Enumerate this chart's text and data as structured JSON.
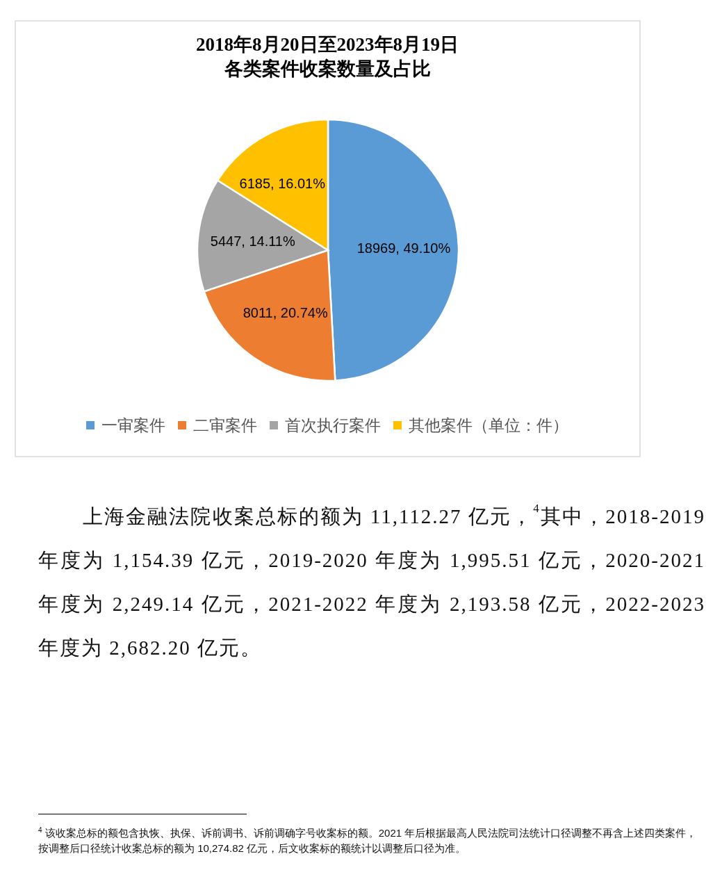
{
  "chart_data": {
    "type": "pie",
    "title": "2018年8月20日至2023年8月19日",
    "subtitle": "各类案件收案数量及占比",
    "categories": [
      "一审案件",
      "二审案件",
      "首次执行案件",
      "其他案件（单位：件）"
    ],
    "values": [
      18969,
      8011,
      5447,
      6185
    ],
    "colors": [
      "#5b9bd5",
      "#ed7d31",
      "#a5a5a5",
      "#ffc000"
    ],
    "value_labels": [
      "18969, 49.10%",
      "8011, 20.74%",
      "5447, 14.11%",
      "6185, 16.01%"
    ],
    "legend": "bottom",
    "annotations": [
      "上海金融法院收案总标的额为 11,112.27 亿元，$^{4}$其中，2018-2019 年度为 1,154.39 亿元，2019-2020 年度为 1,995.51 亿元，2020-2021 年度为 2,249.14 亿元，2021-2022 年度为 2,193.58 亿元，2022-2023 年度为 2,682.20 亿元。",
      "$^{4}$ 该收案总标的额包含执恢、执保、诉前调书、诉前调确字号收案标的额。2021 年后根据最高人民法院司法统计口径调整不再含上述四类案件，按调整后口径统计收案总标的额为 10,274.82 亿元，后文收案标的额统计以调整后口径为准。"
    ]
  }
}
